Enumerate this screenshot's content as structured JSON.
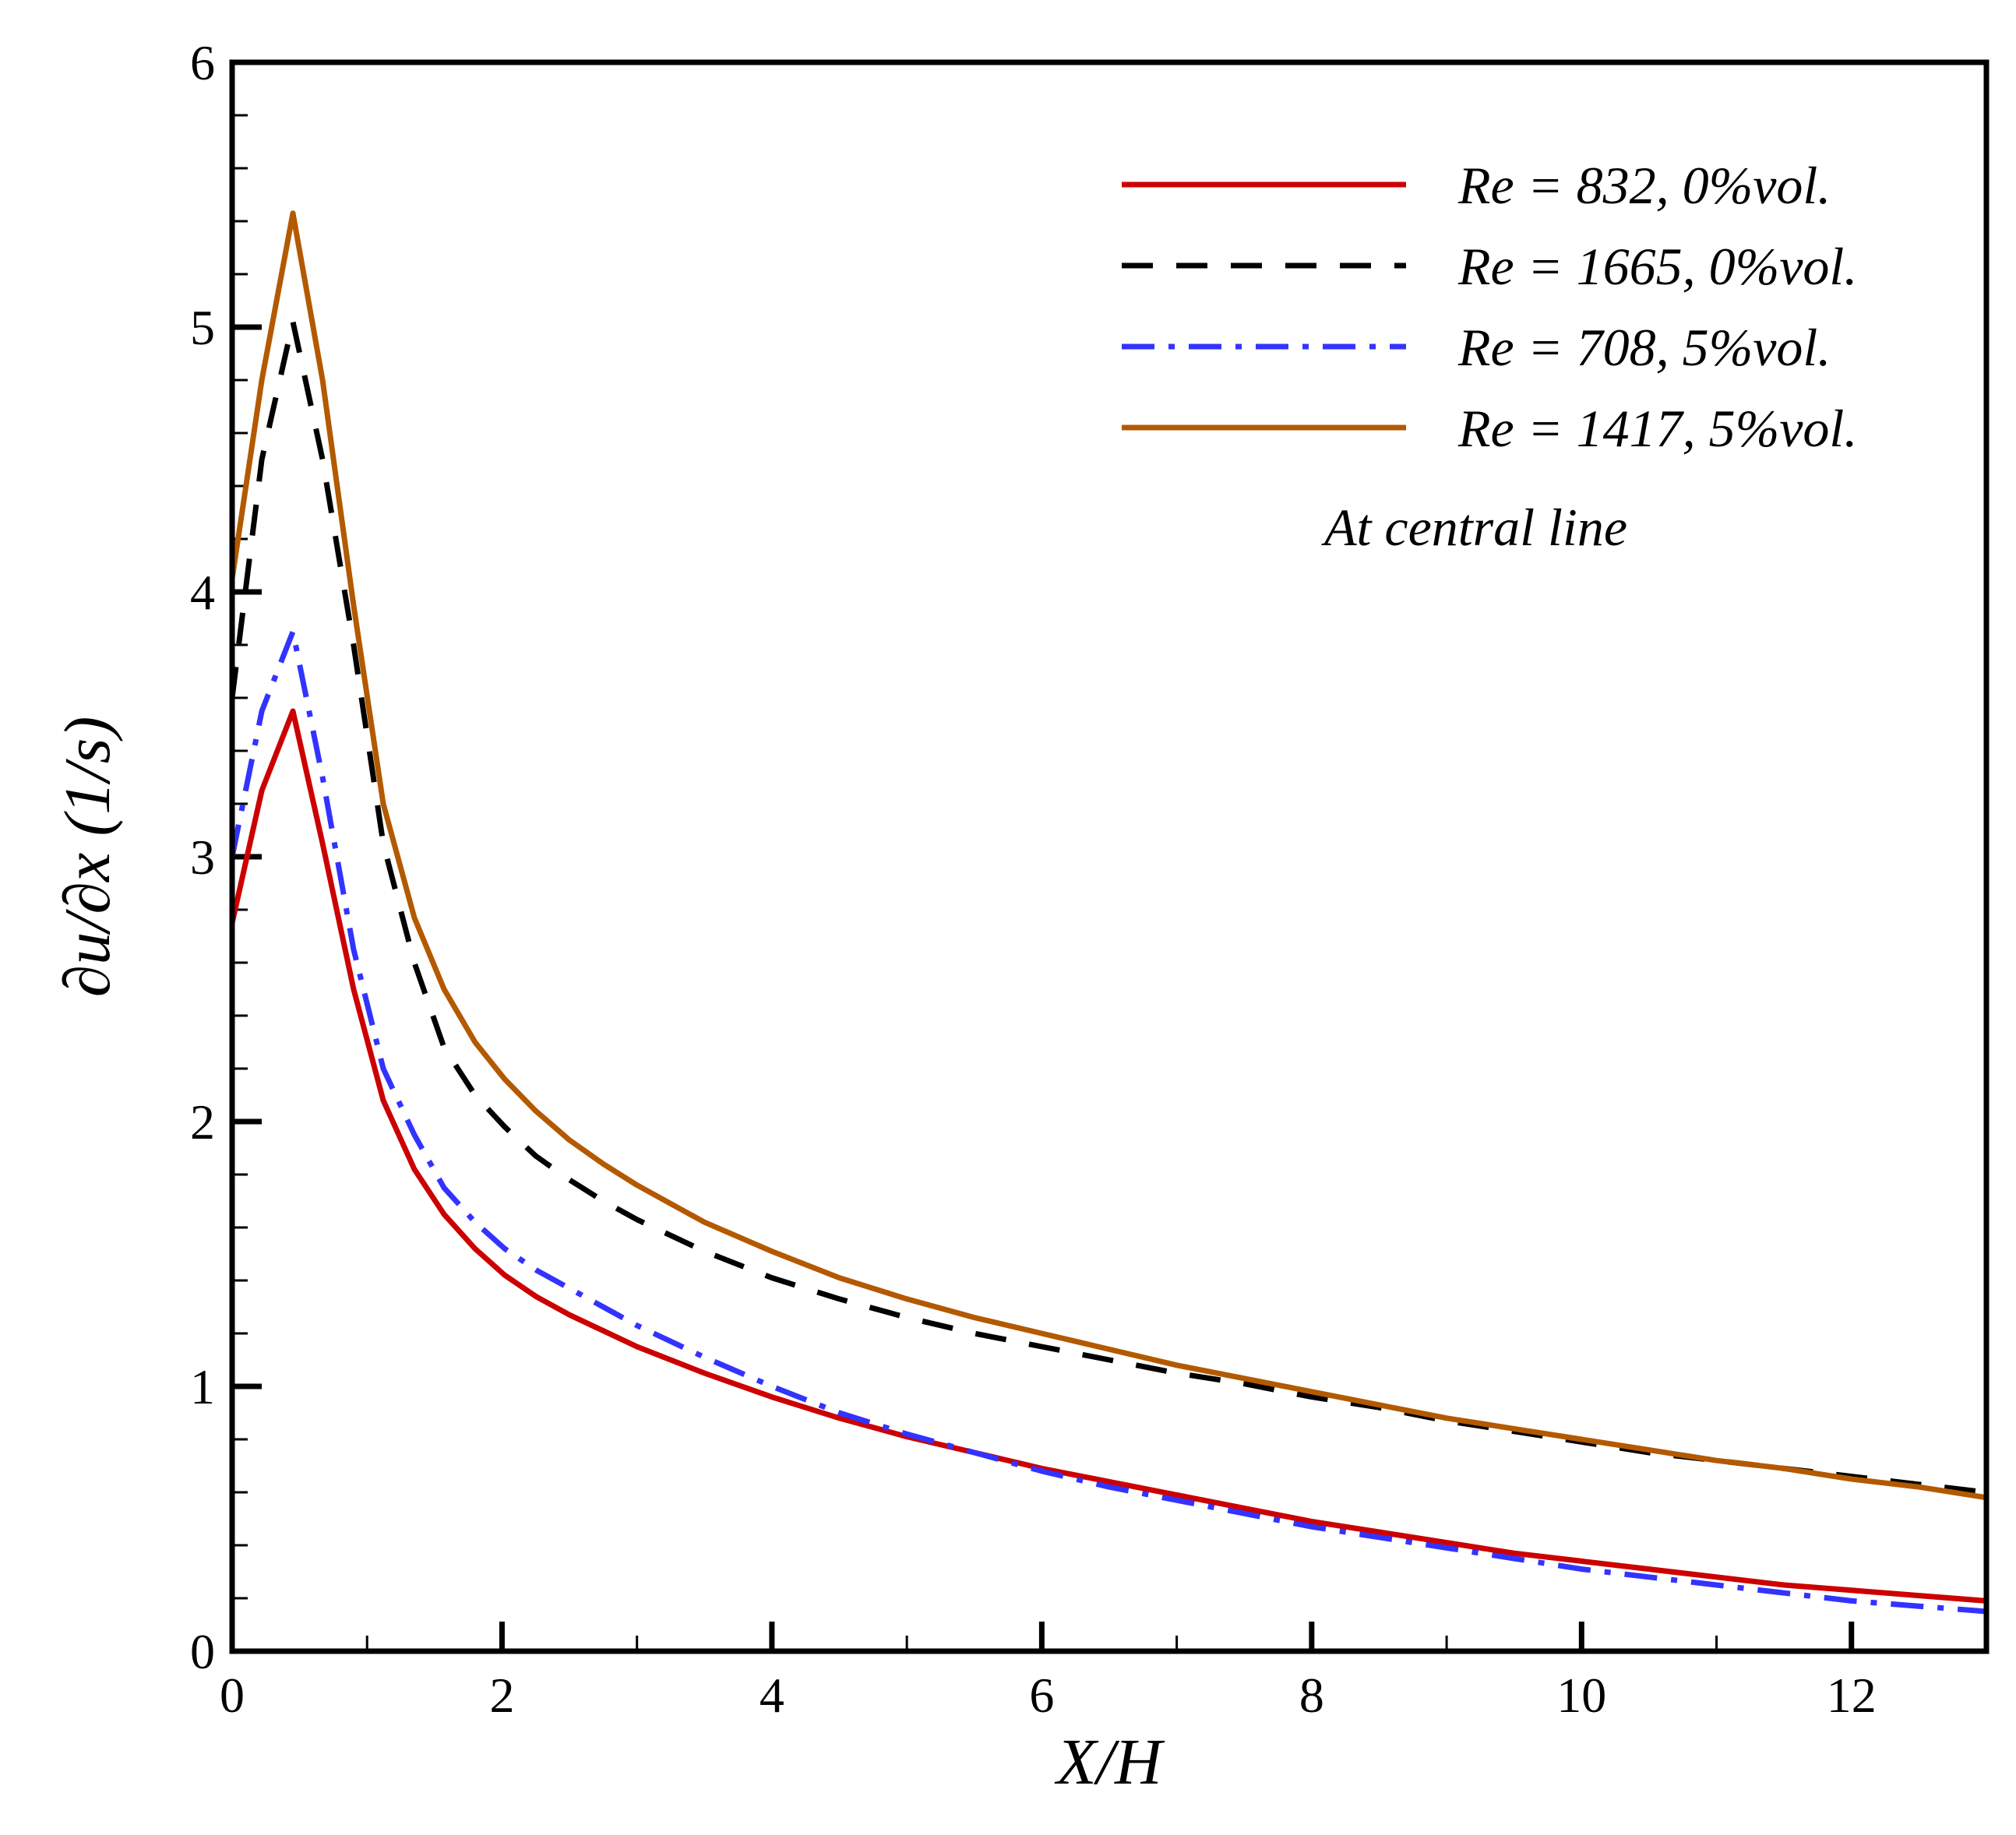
{
  "chart_data": {
    "type": "line",
    "title": "",
    "xlabel": "X/H",
    "ylabel": "∂u/∂x (1/s)",
    "xlim": [
      0,
      13
    ],
    "ylim": [
      0,
      6
    ],
    "xticks": [
      0,
      2,
      4,
      6,
      8,
      10,
      12
    ],
    "xtick_labels": [
      "0",
      "2",
      "4",
      "6",
      "8",
      "10",
      "12"
    ],
    "yticks": [
      0,
      1,
      2,
      3,
      4,
      5,
      6
    ],
    "ytick_labels": [
      "0",
      "1",
      "2",
      "3",
      "4",
      "5",
      "6"
    ],
    "grid": false,
    "legend_position": "top-right",
    "annotation": "At central line",
    "series": [
      {
        "name": "Re = 832, 0%vol.",
        "color": "#cc0000",
        "style": "solid",
        "x": [
          0,
          0.22,
          0.45,
          0.67,
          0.9,
          1.12,
          1.35,
          1.57,
          1.8,
          2.02,
          2.25,
          2.5,
          2.75,
          3.0,
          3.25,
          3.5,
          4.0,
          4.5,
          5.0,
          5.5,
          6.0,
          6.5,
          7.0,
          7.5,
          8.0,
          8.5,
          9.0,
          9.5,
          10.0,
          10.5,
          11.0,
          11.5,
          12.0,
          12.5,
          13.0
        ],
        "y": [
          2.75,
          3.25,
          3.55,
          3.05,
          2.5,
          2.08,
          1.82,
          1.65,
          1.52,
          1.42,
          1.34,
          1.27,
          1.21,
          1.15,
          1.1,
          1.05,
          0.96,
          0.88,
          0.81,
          0.75,
          0.69,
          0.64,
          0.59,
          0.54,
          0.49,
          0.45,
          0.41,
          0.37,
          0.34,
          0.31,
          0.28,
          0.25,
          0.23,
          0.21,
          0.19
        ]
      },
      {
        "name": "Re = 1665, 0%vol.",
        "color": "#000000",
        "style": "dashed",
        "x": [
          0,
          0.22,
          0.45,
          0.67,
          0.9,
          1.12,
          1.35,
          1.57,
          1.8,
          2.02,
          2.25,
          2.5,
          2.75,
          3.0,
          3.25,
          3.5,
          4.0,
          4.5,
          5.0,
          5.5,
          6.0,
          6.5,
          7.0,
          7.5,
          8.0,
          8.5,
          9.0,
          9.5,
          10.0,
          10.5,
          11.0,
          11.5,
          12.0,
          12.5,
          13.0
        ],
        "y": [
          3.6,
          4.5,
          5.02,
          4.5,
          3.8,
          3.05,
          2.6,
          2.28,
          2.1,
          1.98,
          1.87,
          1.78,
          1.7,
          1.63,
          1.57,
          1.51,
          1.41,
          1.33,
          1.26,
          1.2,
          1.15,
          1.1,
          1.05,
          1.01,
          0.96,
          0.92,
          0.87,
          0.83,
          0.79,
          0.75,
          0.72,
          0.69,
          0.66,
          0.63,
          0.6
        ]
      },
      {
        "name": "Re = 708, 5%vol.",
        "color": "#3333ff",
        "style": "dashdot",
        "x": [
          0,
          0.22,
          0.45,
          0.67,
          0.9,
          1.12,
          1.35,
          1.57,
          1.8,
          2.02,
          2.25,
          2.5,
          2.75,
          3.0,
          3.25,
          3.5,
          4.0,
          4.5,
          5.0,
          5.5,
          6.0,
          6.5,
          7.0,
          7.5,
          8.0,
          8.5,
          9.0,
          9.5,
          10.0,
          10.5,
          11.0,
          11.5,
          12.0,
          12.5,
          13.0
        ],
        "y": [
          3.0,
          3.55,
          3.85,
          3.3,
          2.65,
          2.2,
          1.95,
          1.75,
          1.62,
          1.52,
          1.44,
          1.37,
          1.3,
          1.23,
          1.17,
          1.11,
          1.0,
          0.9,
          0.82,
          0.75,
          0.68,
          0.62,
          0.57,
          0.52,
          0.47,
          0.43,
          0.39,
          0.35,
          0.31,
          0.28,
          0.25,
          0.22,
          0.19,
          0.17,
          0.15
        ]
      },
      {
        "name": "Re = 1417, 5%vol.",
        "color": "#b35900",
        "style": "solid",
        "x": [
          0,
          0.22,
          0.45,
          0.67,
          0.9,
          1.12,
          1.35,
          1.57,
          1.8,
          2.02,
          2.25,
          2.5,
          2.75,
          3.0,
          3.25,
          3.5,
          4.0,
          4.5,
          5.0,
          5.5,
          6.0,
          6.5,
          7.0,
          7.5,
          8.0,
          8.5,
          9.0,
          9.5,
          10.0,
          10.5,
          11.0,
          11.5,
          12.0,
          12.5,
          13.0
        ],
        "y": [
          4.05,
          4.8,
          5.43,
          4.8,
          3.95,
          3.2,
          2.77,
          2.5,
          2.3,
          2.16,
          2.04,
          1.93,
          1.84,
          1.76,
          1.69,
          1.62,
          1.51,
          1.41,
          1.33,
          1.26,
          1.2,
          1.14,
          1.08,
          1.03,
          0.98,
          0.93,
          0.88,
          0.84,
          0.8,
          0.76,
          0.72,
          0.69,
          0.65,
          0.62,
          0.58
        ]
      }
    ]
  }
}
